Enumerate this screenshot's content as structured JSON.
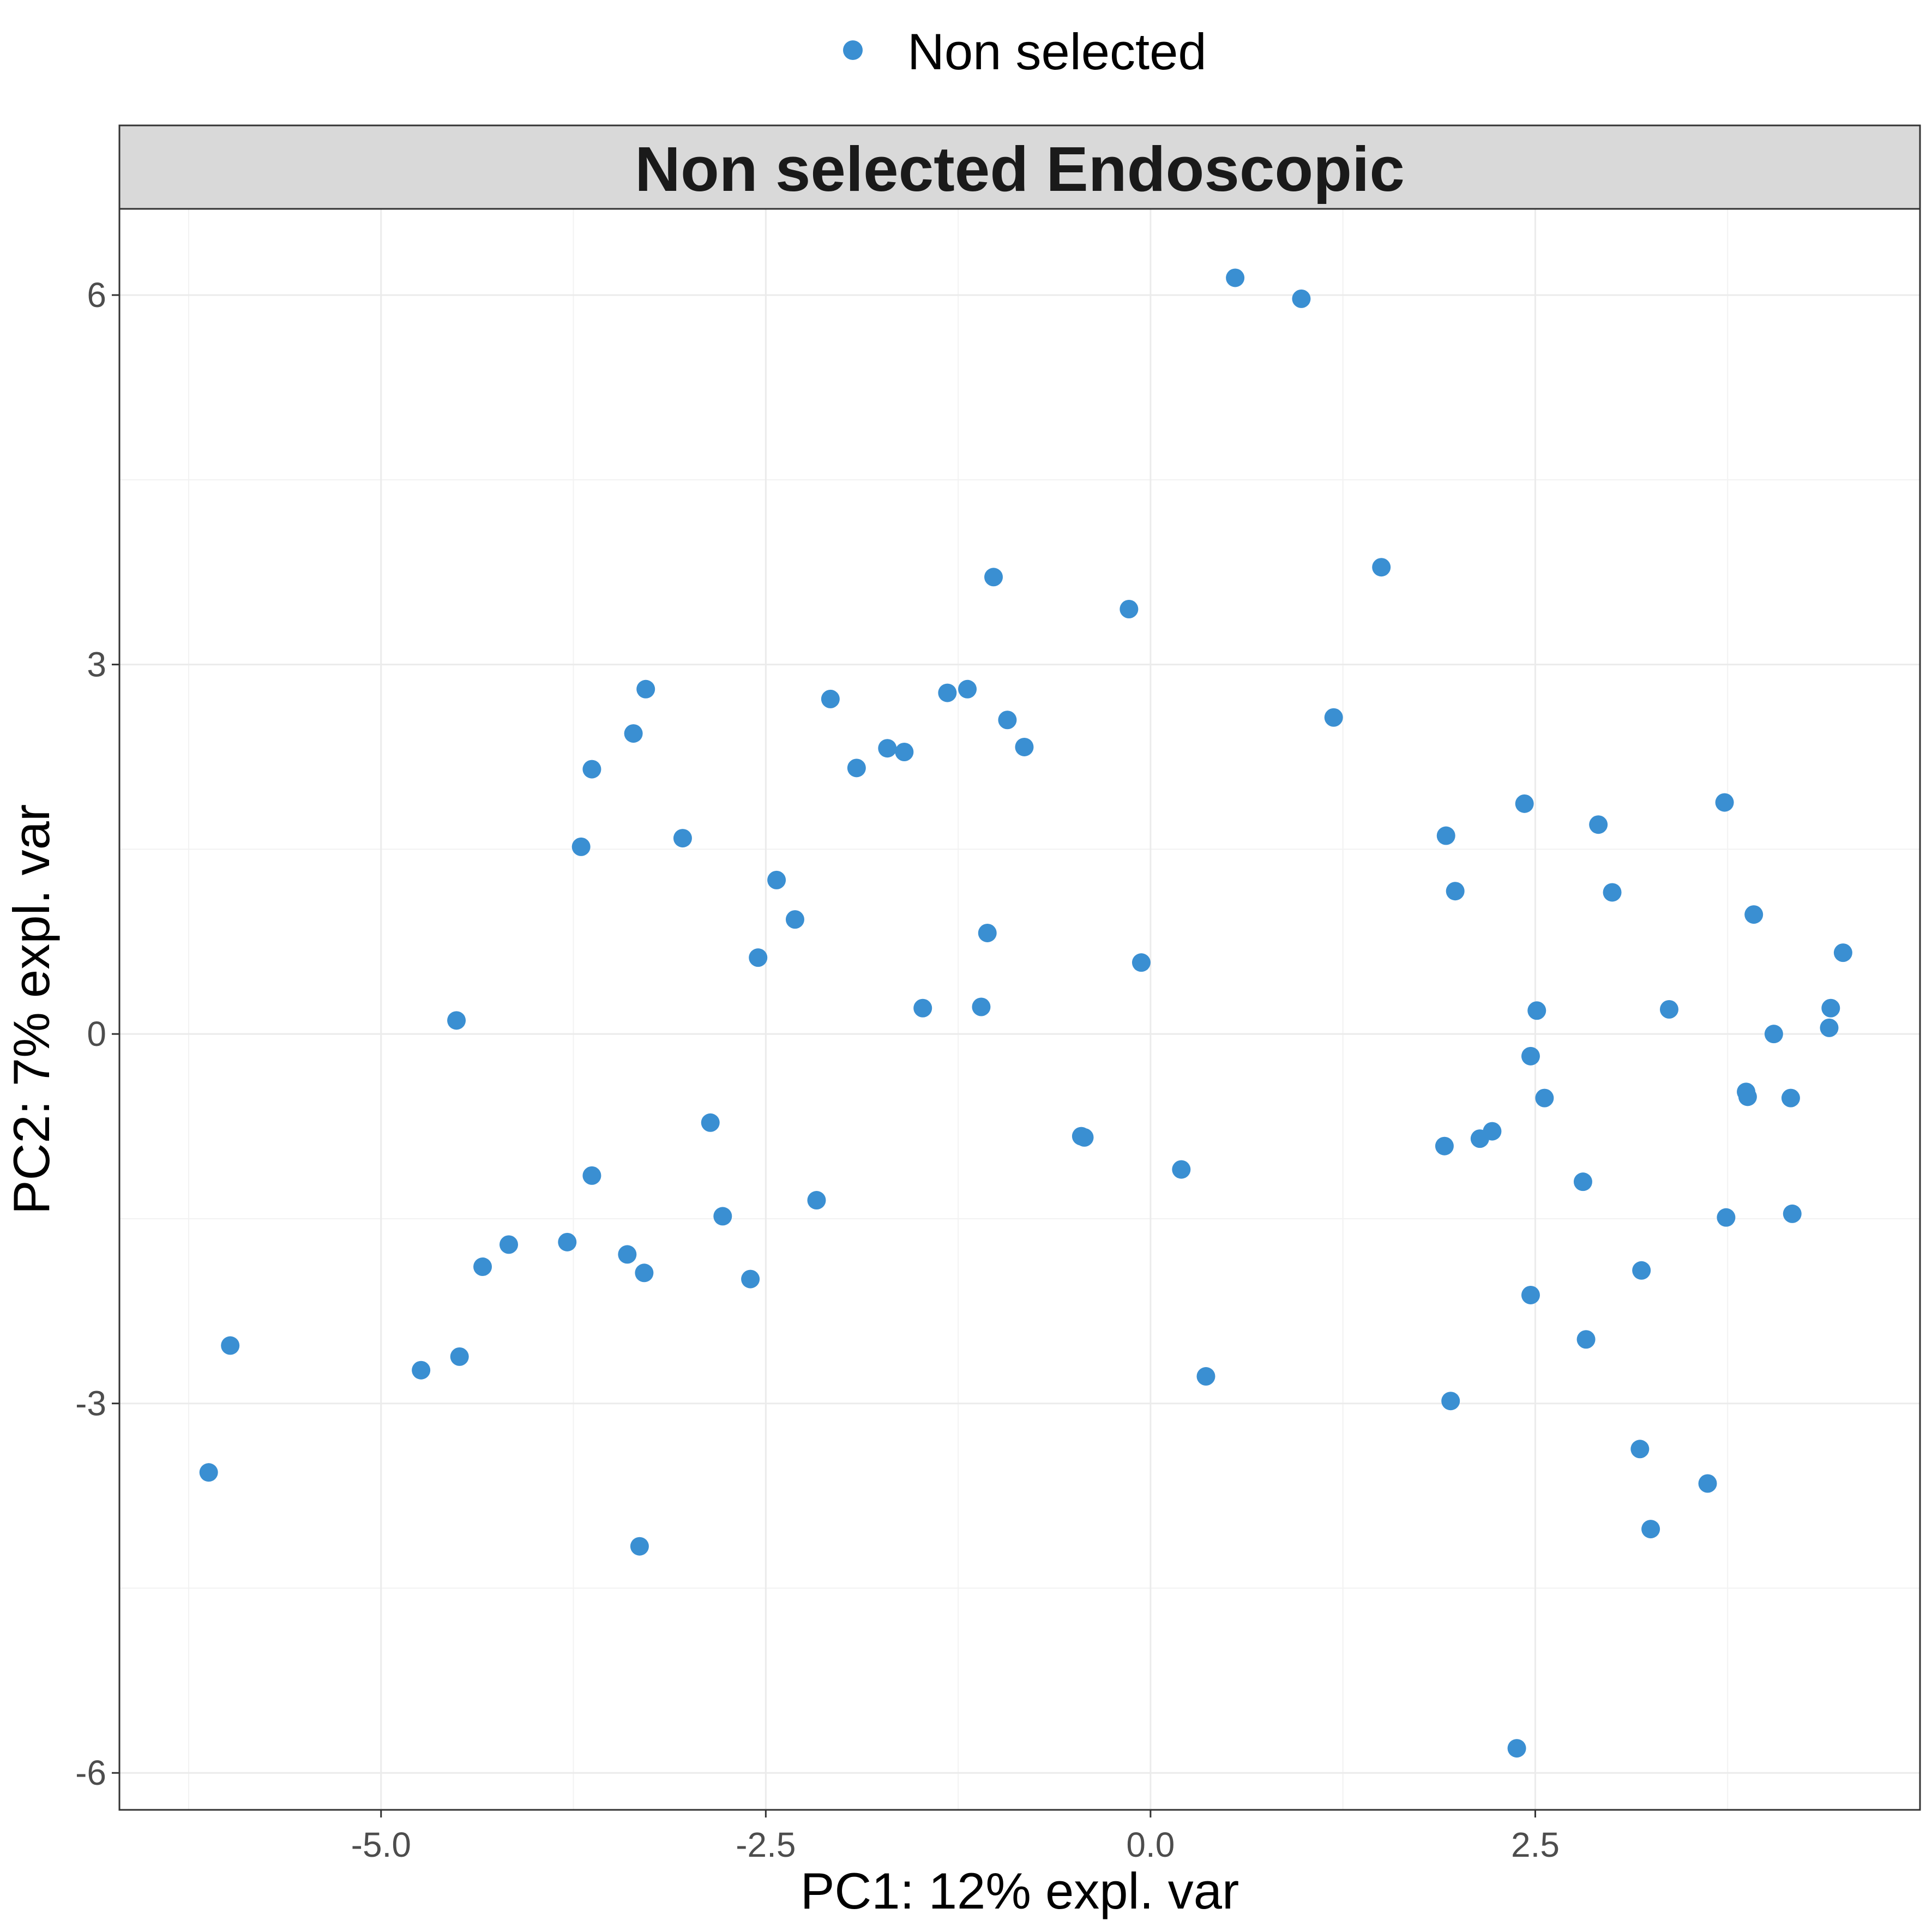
{
  "chart_data": {
    "type": "scatter",
    "facet_title": "Non selected Endoscopic",
    "xlabel": "PC1: 12% expl. var",
    "ylabel": "PC2: 7% expl. var",
    "xlim": [
      -6.7,
      5.0
    ],
    "ylim": [
      -6.3,
      6.7
    ],
    "x_ticks": [
      -5.0,
      -2.5,
      0.0,
      2.5
    ],
    "x_tick_labels": [
      "-5.0",
      "-2.5",
      "0.0",
      "2.5"
    ],
    "y_ticks": [
      -6,
      -3,
      0,
      3,
      6
    ],
    "y_tick_labels": [
      "-6",
      "-3",
      "0",
      "3",
      "6"
    ],
    "grid": true,
    "legend": {
      "position": "top",
      "entries": [
        {
          "name": "Non selected",
          "color": "#3a8fd2"
        }
      ]
    },
    "series": [
      {
        "name": "Non selected",
        "color": "#3a8fd2",
        "points": [
          [
            0.55,
            6.14
          ],
          [
            0.98,
            5.97
          ],
          [
            1.5,
            3.79
          ],
          [
            -1.02,
            3.71
          ],
          [
            -0.14,
            3.45
          ],
          [
            1.19,
            2.57
          ],
          [
            -3.28,
            2.8
          ],
          [
            -1.19,
            2.8
          ],
          [
            -1.32,
            2.77
          ],
          [
            -2.08,
            2.72
          ],
          [
            -0.93,
            2.55
          ],
          [
            -3.36,
            2.44
          ],
          [
            -0.82,
            2.33
          ],
          [
            -1.71,
            2.32
          ],
          [
            -1.6,
            2.29
          ],
          [
            -1.91,
            2.16
          ],
          [
            -3.63,
            2.15
          ],
          [
            2.43,
            1.87
          ],
          [
            3.73,
            1.88
          ],
          [
            2.91,
            1.7
          ],
          [
            1.92,
            1.61
          ],
          [
            -3.04,
            1.59
          ],
          [
            -3.7,
            1.52
          ],
          [
            -2.43,
            1.25
          ],
          [
            1.98,
            1.16
          ],
          [
            3.0,
            1.15
          ],
          [
            3.92,
            0.97
          ],
          [
            -2.31,
            0.93
          ],
          [
            -1.06,
            0.82
          ],
          [
            4.5,
            0.66
          ],
          [
            -2.55,
            0.62
          ],
          [
            -0.06,
            0.58
          ],
          [
            4.42,
            0.21
          ],
          [
            -1.48,
            0.21
          ],
          [
            -1.1,
            0.22
          ],
          [
            2.51,
            0.19
          ],
          [
            3.37,
            0.2
          ],
          [
            -4.51,
            0.11
          ],
          [
            4.41,
            0.05
          ],
          [
            4.05,
            0.0
          ],
          [
            2.47,
            -0.18
          ],
          [
            3.87,
            -0.47
          ],
          [
            3.88,
            -0.51
          ],
          [
            2.56,
            -0.52
          ],
          [
            4.16,
            -0.52
          ],
          [
            -2.86,
            -0.72
          ],
          [
            -0.45,
            -0.83
          ],
          [
            -0.43,
            -0.84
          ],
          [
            2.22,
            -0.79
          ],
          [
            2.14,
            -0.85
          ],
          [
            1.91,
            -0.91
          ],
          [
            0.2,
            -1.1
          ],
          [
            -3.63,
            -1.15
          ],
          [
            2.81,
            -1.2
          ],
          [
            -2.17,
            -1.35
          ],
          [
            -2.78,
            -1.48
          ],
          [
            3.74,
            -1.49
          ],
          [
            4.17,
            -1.46
          ],
          [
            -3.79,
            -1.69
          ],
          [
            -4.17,
            -1.71
          ],
          [
            -3.4,
            -1.79
          ],
          [
            -4.34,
            -1.89
          ],
          [
            -3.29,
            -1.94
          ],
          [
            3.19,
            -1.92
          ],
          [
            -2.6,
            -1.99
          ],
          [
            2.47,
            -2.12
          ],
          [
            -5.98,
            -2.53
          ],
          [
            -4.49,
            -2.62
          ],
          [
            -4.74,
            -2.73
          ],
          [
            2.83,
            -2.48
          ],
          [
            0.36,
            -2.78
          ],
          [
            1.95,
            -2.98
          ],
          [
            3.18,
            -3.37
          ],
          [
            3.62,
            -3.65
          ],
          [
            -6.12,
            -3.56
          ],
          [
            3.25,
            -4.02
          ],
          [
            -3.32,
            -4.16
          ],
          [
            2.38,
            -5.8
          ]
        ]
      }
    ]
  }
}
